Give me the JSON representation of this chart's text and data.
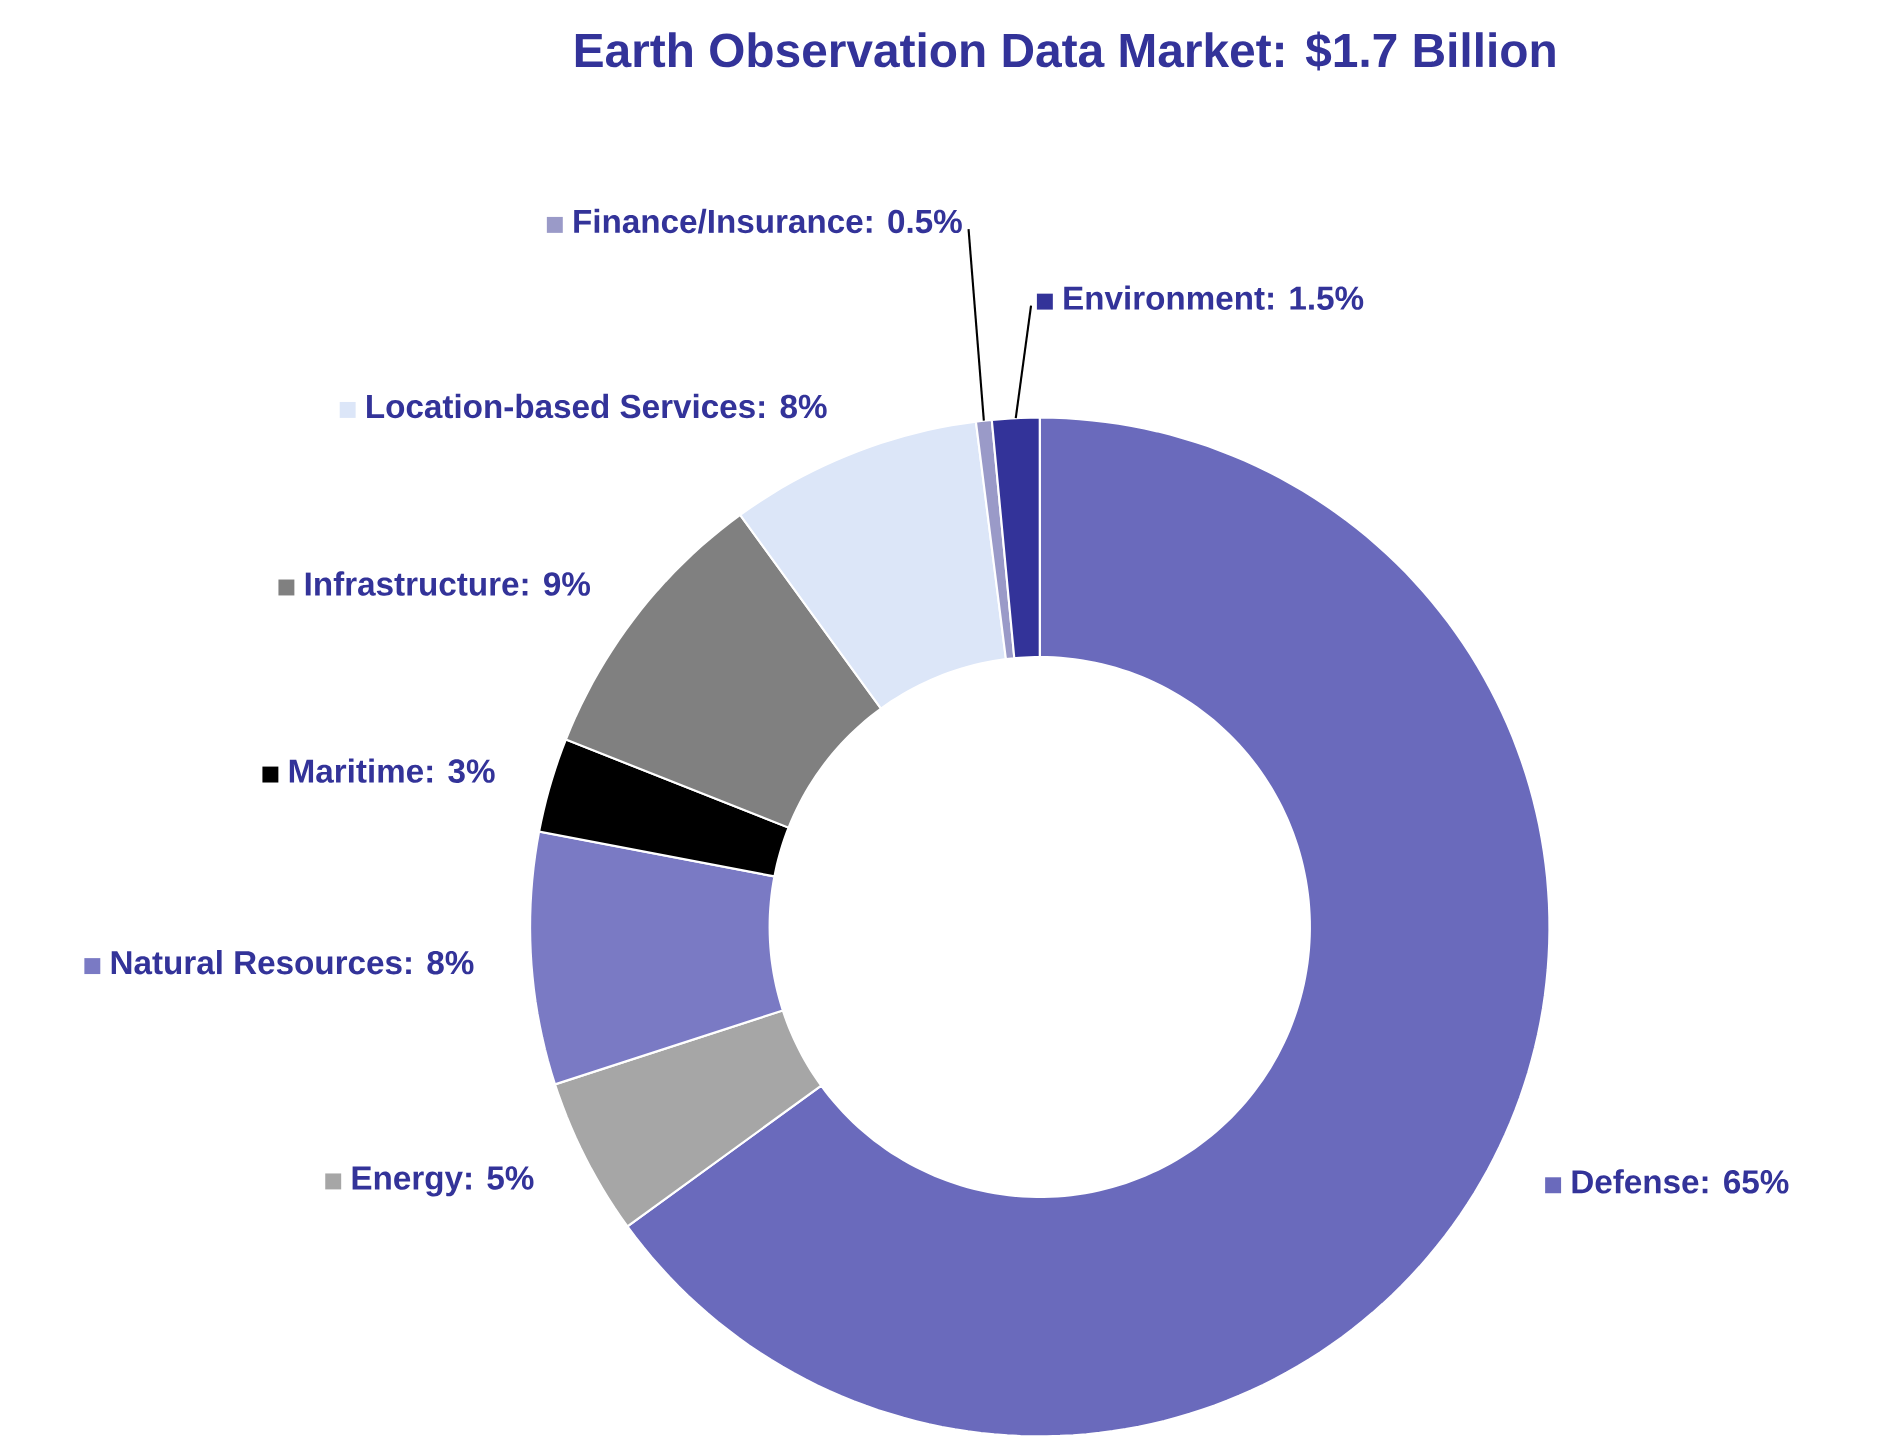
{
  "chart_data": {
    "type": "donut",
    "title": "Earth Observation Data Market: $1.7 Billion",
    "categories": [
      "Defense: 65%",
      "Energy: 5%",
      "Natural Resources: 8%",
      "Maritime: 3%",
      "Infrastructure: 9%",
      "Location-based Services: 8%",
      "Finance/Insurance: 0.5%",
      "Environment: 1.5%"
    ],
    "values": [
      65,
      5,
      8,
      3,
      9,
      8,
      0.5,
      1.5
    ],
    "legend": "left",
    "colors": [
      "#6a6abc",
      "#a6a6a6",
      "#7a7ac4",
      "#000000",
      "#808080",
      "#dce6f8",
      "#9a9ac8",
      "#333399"
    ]
  }
}
